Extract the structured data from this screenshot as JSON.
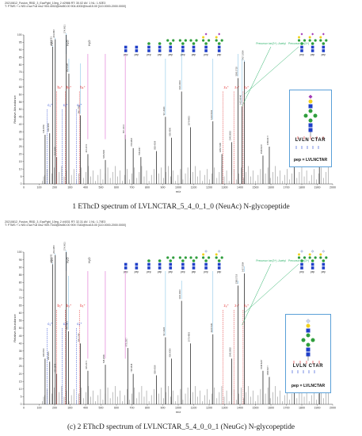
{
  "colors": {
    "peak": "#111111",
    "ion_line": "#66b3e0",
    "green_line": "#2fb36b",
    "magenta_line": "#d64fc6",
    "red_ion": "#e02020",
    "blue_ion": "#2040d0",
    "hexnac": "#1f3fc8",
    "hex": "#2f9e3c",
    "gal": "#f1d21f",
    "neuac": "#a23ab7",
    "neugc": "#cfd9f2",
    "fuc": "#e23b2f",
    "inset_border": "#5aa0d8"
  },
  "panels": [
    {
      "header": [
        "20210812_Fusion_RBD_3_EacPgbl_10eg_2 #2986  RT: 30.02  AV: 1  NL: 1.92E3",
        "T: FTMS + c NSI d sa Full ms2 904.4002@etd50.00 904.4002@hcd15.00 [110.0000-2000.0000]"
      ],
      "caption": "1 EThcD spectrum of LVLNCTAR_5_4_0_1_0 (NeuAc) N-glycopeptide",
      "inset": {
        "pep_label": "pep = LVLNCTAR",
        "sequence": "LVLN CTAR",
        "sialic": "neuac"
      },
      "annotations": [
        "pep",
        "Precursor ion(3+) -Acetyl",
        "Precursor ion(3+)",
        "H₂O",
        "b₂⁺",
        "b₃⁺",
        "c₁⁺",
        "c₂⁺",
        "c₃⁺",
        "z₆⁺",
        "z₇⁺",
        "z₈⁺"
      ],
      "chart_data": {
        "type": "bar",
        "title": "",
        "xlabel": "m/z",
        "ylabel": "Relative Abundance",
        "xlim": [
          0,
          2000
        ],
        "ylim": [
          0,
          100
        ],
        "xticks": [
          0,
          100,
          200,
          300,
          400,
          500,
          600,
          700,
          800,
          900,
          1000,
          1100,
          1200,
          1300,
          1400,
          1500,
          1600,
          1700,
          1800,
          1900,
          2000
        ],
        "yticks": [
          0,
          5,
          10,
          15,
          20,
          25,
          30,
          35,
          40,
          45,
          50,
          55,
          60,
          65,
          70,
          75,
          80,
          85,
          90,
          95,
          100
        ],
        "peaks": [
          {
            "mz": 138.05,
            "intensity": 33,
            "label": "138.0550"
          },
          {
            "mz": 168.07,
            "intensity": 34,
            "label": "168.0655"
          },
          {
            "mz": 186.08,
            "intensity": 92,
            "label": "186.0761"
          },
          {
            "mz": 204.09,
            "intensity": 97,
            "label": "204.0867"
          },
          {
            "mz": 213.16,
            "intensity": 18,
            "label": "213.1598"
          },
          {
            "mz": 274.09,
            "intensity": 100,
            "label": "274.0921"
          },
          {
            "mz": 292.1,
            "intensity": 74,
            "label": "292.1028"
          },
          {
            "mz": 366.14,
            "intensity": 46,
            "label": "366.1396"
          },
          {
            "mz": 415.2,
            "intensity": 20,
            "label": "415.2071"
          },
          {
            "mz": 528.29,
            "intensity": 16,
            "label": "528.2906"
          },
          {
            "mz": 657.24,
            "intensity": 33,
            "label": "657.2372"
          },
          {
            "mz": 708.38,
            "intensity": 24,
            "label": "708.3818"
          },
          {
            "mz": 758.41,
            "intensity": 18,
            "label": "758.4067"
          },
          {
            "mz": 858.4,
            "intensity": 22,
            "label": "858.4039"
          },
          {
            "mz": 917.44,
            "intensity": 45,
            "label": "917.4424"
          },
          {
            "mz": 956.44,
            "intensity": 31,
            "label": "956.4390"
          },
          {
            "mz": 1021.46,
            "intensity": 62,
            "label": "1021.4610"
          },
          {
            "mz": 1079.48,
            "intensity": 38,
            "label": "1079.4803"
          },
          {
            "mz": 1224.53,
            "intensity": 42,
            "label": "1224.5341"
          },
          {
            "mz": 1282.52,
            "intensity": 20,
            "label": "1282.5196"
          },
          {
            "mz": 1345.57,
            "intensity": 28,
            "label": "1345.5662"
          },
          {
            "mz": 1386.57,
            "intensity": 71,
            "label": "1386.5718"
          },
          {
            "mz": 1413.6,
            "intensity": 52,
            "label": "1413.6046"
          },
          {
            "mz": 1427.59,
            "intensity": 82,
            "label": "1427.5934"
          },
          {
            "mz": 1548.6,
            "intensity": 19,
            "label": "1548.6247"
          },
          {
            "mz": 1589.65,
            "intensity": 25,
            "label": "1589.6477"
          },
          {
            "mz": 1751.7,
            "intensity": 17,
            "label": "1751.7011"
          },
          {
            "mz": 1913.76,
            "intensity": 15,
            "label": "1913.7585"
          }
        ]
      }
    },
    {
      "header": [
        "20210812_Fusion_RBD_3_EacPgbl_10eg_2 #4031  RT: 32.31  AV: 1  NL: 1.70E3",
        "T: FTMS + c NSI d sa Full ms2 909.7343@etd50.00 909.7343@hcd15.00 [110.0000-2000.0000]"
      ],
      "caption": "(c) 2 EThcD spectrum of LVLNCTAR_5_4_0_0_1 (NeuGc) N-glycopeptide",
      "inset": {
        "pep_label": "pep = LVLNCTAR",
        "sequence": "LVLN CTAR",
        "sialic": "neugc"
      },
      "annotations": [
        "pep",
        "Precursor ion(3+) -Acetyl",
        "Precursor ion(3+)",
        "H₂O",
        "b₂⁺",
        "b₃⁺",
        "c₁⁺",
        "c₂⁺",
        "c₃⁺",
        "z₆⁺",
        "z₇⁺",
        "z₈⁺"
      ],
      "chart_data": {
        "type": "bar",
        "title": "",
        "xlabel": "m/z",
        "ylabel": "Relative Abundance",
        "xlim": [
          0,
          2000
        ],
        "ylim": [
          0,
          100
        ],
        "xticks": [
          0,
          100,
          200,
          300,
          400,
          500,
          600,
          700,
          800,
          900,
          1000,
          1100,
          1200,
          1300,
          1400,
          1500,
          1600,
          1700,
          1800,
          1900,
          2000
        ],
        "yticks": [
          0,
          5,
          10,
          15,
          20,
          25,
          30,
          35,
          40,
          45,
          50,
          55,
          60,
          65,
          70,
          75,
          80,
          85,
          90,
          95,
          100
        ],
        "peaks": [
          {
            "mz": 138.05,
            "intensity": 30,
            "label": "138.0550"
          },
          {
            "mz": 168.07,
            "intensity": 28,
            "label": "168.0655"
          },
          {
            "mz": 186.08,
            "intensity": 92,
            "label": "186.0761"
          },
          {
            "mz": 204.09,
            "intensity": 98,
            "label": "204.0867"
          },
          {
            "mz": 213.16,
            "intensity": 20,
            "label": "213.1598"
          },
          {
            "mz": 274.09,
            "intensity": 100,
            "label": "274.0921"
          },
          {
            "mz": 290.09,
            "intensity": 48,
            "label": "290.0871"
          },
          {
            "mz": 366.14,
            "intensity": 40,
            "label": "366.1396"
          },
          {
            "mz": 415.2,
            "intensity": 22,
            "label": "415.2071"
          },
          {
            "mz": 528.29,
            "intensity": 26,
            "label": "528.2906"
          },
          {
            "mz": 673.23,
            "intensity": 37,
            "label": "673.2317"
          },
          {
            "mz": 708.38,
            "intensity": 20,
            "label": "708.3818"
          },
          {
            "mz": 858.4,
            "intensity": 19,
            "label": "858.4039"
          },
          {
            "mz": 917.44,
            "intensity": 44,
            "label": "917.4424"
          },
          {
            "mz": 956.44,
            "intensity": 30,
            "label": "956.4390"
          },
          {
            "mz": 1021.46,
            "intensity": 68,
            "label": "1021.4610"
          },
          {
            "mz": 1079.48,
            "intensity": 40,
            "label": "1079.4803"
          },
          {
            "mz": 1224.53,
            "intensity": 46,
            "label": "1224.5341"
          },
          {
            "mz": 1345.57,
            "intensity": 30,
            "label": "1345.5662"
          },
          {
            "mz": 1386.57,
            "intensity": 78,
            "label": "1386.5718"
          },
          {
            "mz": 1427.59,
            "intensity": 86,
            "label": "1427.5934"
          },
          {
            "mz": 1548.6,
            "intensity": 22,
            "label": "1548.6247"
          },
          {
            "mz": 1589.65,
            "intensity": 18,
            "label": "1589.6477"
          },
          {
            "mz": 1751.7,
            "intensity": 14,
            "label": "1751.7011"
          },
          {
            "mz": 1913.76,
            "intensity": 12,
            "label": "1913.7585"
          }
        ]
      }
    }
  ]
}
